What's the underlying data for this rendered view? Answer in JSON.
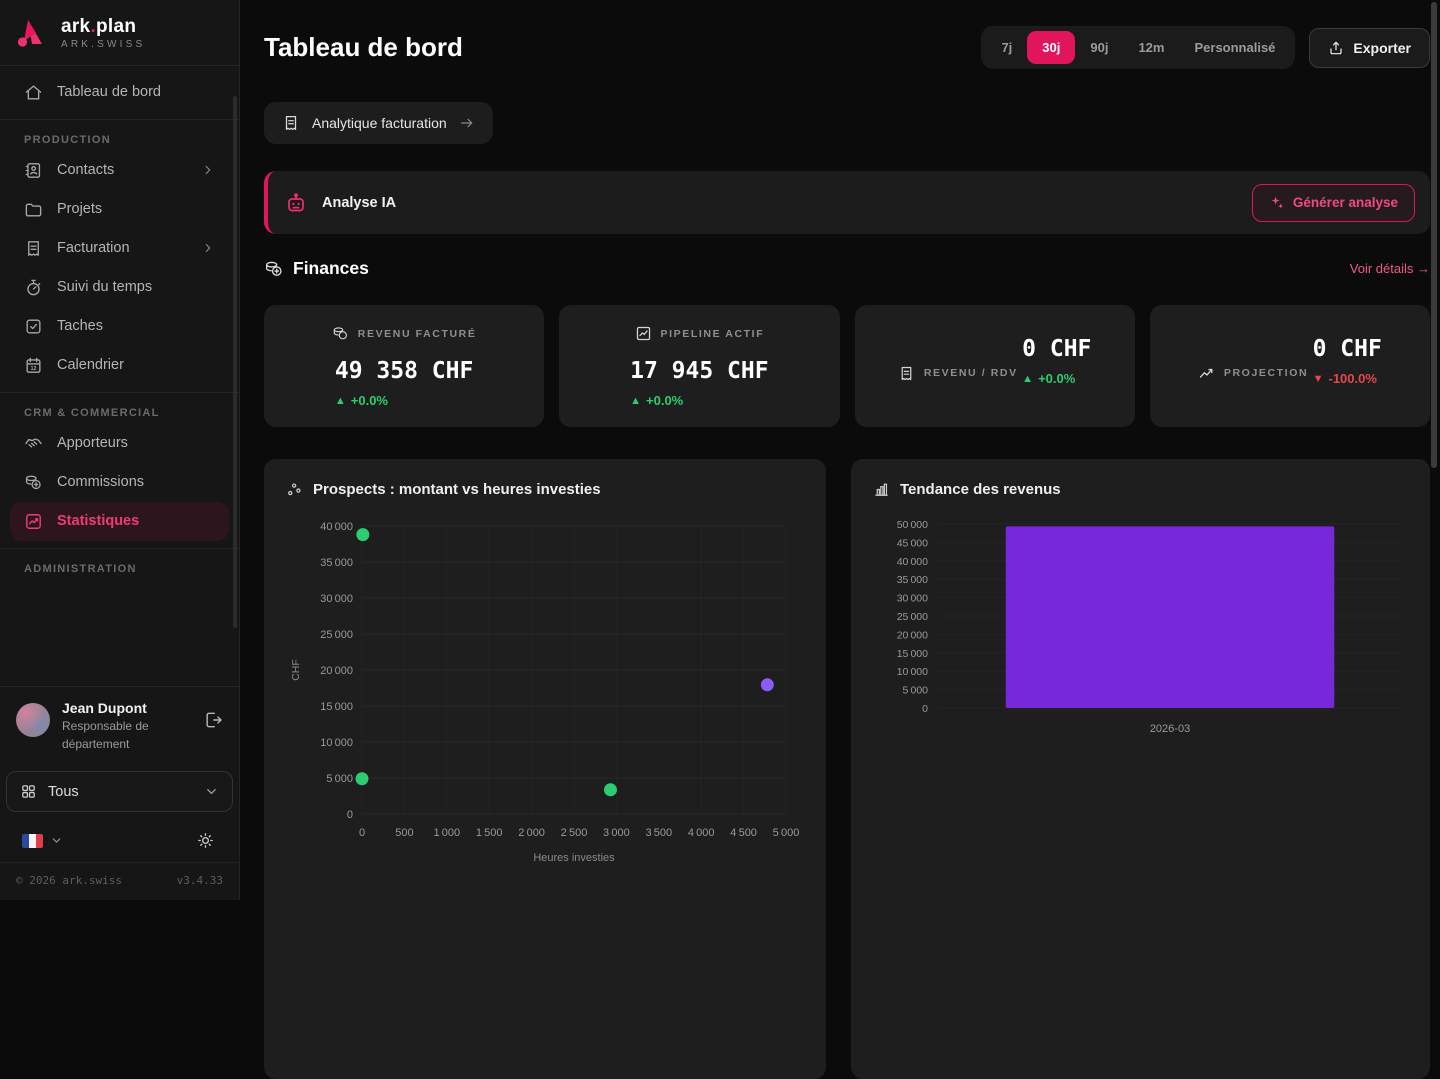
{
  "brand": {
    "prefix": "ark",
    "dot": ".",
    "suffix": "plan",
    "subtitle": "ARK.SWISS"
  },
  "sidebar": {
    "home": {
      "label": "Tableau de bord"
    },
    "sections": [
      {
        "label": "PRODUCTION",
        "items": [
          {
            "label": "Contacts"
          },
          {
            "label": "Projets"
          },
          {
            "label": "Facturation"
          },
          {
            "label": "Suivi du temps"
          },
          {
            "label": "Taches"
          },
          {
            "label": "Calendrier"
          }
        ]
      },
      {
        "label": "CRM & COMMERCIAL",
        "items": [
          {
            "label": "Apporteurs"
          },
          {
            "label": "Commissions"
          },
          {
            "label": "Statistiques",
            "active": true
          }
        ]
      },
      {
        "label": "ADMINISTRATION",
        "items": []
      }
    ],
    "profile": {
      "name": "Jean Dupont",
      "role": "Responsable de département"
    },
    "filter": {
      "value": "Tous"
    },
    "footer": {
      "copyright": "© 2026 ark.swiss",
      "version": "v3.4.33"
    }
  },
  "header": {
    "title": "Tableau de bord",
    "ranges": [
      {
        "label": "7j"
      },
      {
        "label": "30j",
        "active": true
      },
      {
        "label": "90j"
      },
      {
        "label": "12m"
      },
      {
        "label": "Personnalisé"
      }
    ],
    "active_range": "30j",
    "export_label": "Exporter"
  },
  "shortcuts": {
    "billing_analytics": "Analytique facturation"
  },
  "ai": {
    "label": "Analyse IA",
    "button": "Générer analyse"
  },
  "finances": {
    "title": "Finances",
    "details_link": "Voir détails →",
    "cards": [
      {
        "label": "REVENU FACTURÉ",
        "value": "49 358 CHF",
        "delta_arrow": "▲",
        "delta": "+0.0%",
        "delta_color": "#2ecc71"
      },
      {
        "label": "PIPELINE ACTIF",
        "value": "17 945 CHF",
        "delta_arrow": "▲",
        "delta": "+0.0%",
        "delta_color": "#2ecc71"
      },
      {
        "label": "REVENU / RDV",
        "value": "0 CHF",
        "delta_arrow": "▲",
        "delta": "+0.0%",
        "delta_color": "#2ecc71"
      },
      {
        "label": "PROJECTION",
        "value": "0 CHF",
        "delta_arrow": "▼",
        "delta": "-100.0%",
        "delta_color": "#e5484d"
      }
    ]
  },
  "chart_data": [
    {
      "type": "scatter",
      "title": "Prospects : montant vs heures investies",
      "xlabel": "Heures investies",
      "ylabel": "CHF",
      "xlim": [
        0,
        5000
      ],
      "ylim": [
        0,
        40000
      ],
      "xtick_step": 500,
      "ytick_step": 5000,
      "grid": true,
      "points": [
        {
          "x": 10,
          "y": 38800,
          "color": "#2ecc71"
        },
        {
          "x": 0,
          "y": 4900,
          "color": "#2ecc71"
        },
        {
          "x": 2930,
          "y": 3360,
          "color": "#2ecc71"
        },
        {
          "x": 4780,
          "y": 17945,
          "color": "#8b5cf6"
        }
      ]
    },
    {
      "type": "bar",
      "title": "Tendance des revenus",
      "categories": [
        "2026-03"
      ],
      "values": [
        49358
      ],
      "bar_color": "#7728d8",
      "ylim": [
        0,
        50000
      ],
      "ytick_step": 5000,
      "grid": true,
      "legend": false
    }
  ]
}
